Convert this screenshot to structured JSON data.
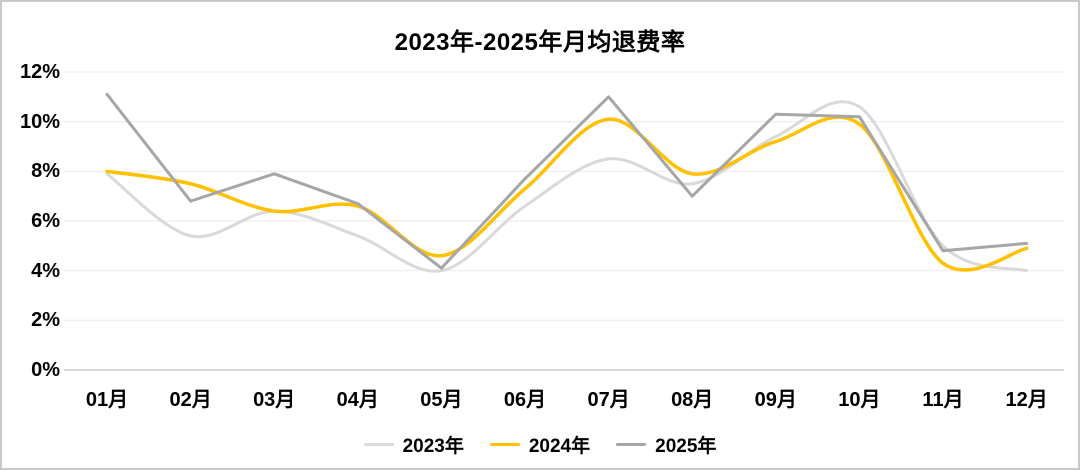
{
  "window": {
    "background_color": "#ffffff",
    "border_color": "#c9c9c9"
  },
  "chart_data": {
    "type": "line",
    "title": "2023年-2025年月均退费率",
    "categories": [
      "01月",
      "02月",
      "03月",
      "04月",
      "05月",
      "06月",
      "07月",
      "08月",
      "09月",
      "10月",
      "11月",
      "12月"
    ],
    "series": [
      {
        "name": "2023年",
        "color": "#D9D9D9",
        "smooth": true,
        "values": [
          7.9,
          5.4,
          6.4,
          5.4,
          4.0,
          6.6,
          8.5,
          7.5,
          9.4,
          10.6,
          5.0,
          4.0
        ]
      },
      {
        "name": "2024年",
        "color": "#FFC000",
        "smooth": true,
        "values": [
          8.0,
          7.5,
          6.4,
          6.6,
          4.6,
          7.3,
          10.1,
          7.9,
          9.2,
          9.9,
          4.3,
          4.9
        ]
      },
      {
        "name": "2025年",
        "color": "#A6A6A6",
        "smooth": false,
        "values": [
          11.1,
          6.8,
          7.9,
          6.7,
          4.1,
          7.7,
          11.0,
          7.0,
          10.3,
          10.2,
          4.8,
          5.1
        ]
      }
    ],
    "xlabel": "",
    "ylabel": "",
    "ylim": [
      0,
      12
    ],
    "ytick_step": 2,
    "ytick_labels": [
      "0%",
      "2%",
      "4%",
      "6%",
      "8%",
      "10%",
      "12%"
    ],
    "grid": true,
    "gridline_color": "#f0f0f0",
    "axisline_color": "#d6d6d6",
    "legend_position": "bottom",
    "text_color": "#000000"
  }
}
